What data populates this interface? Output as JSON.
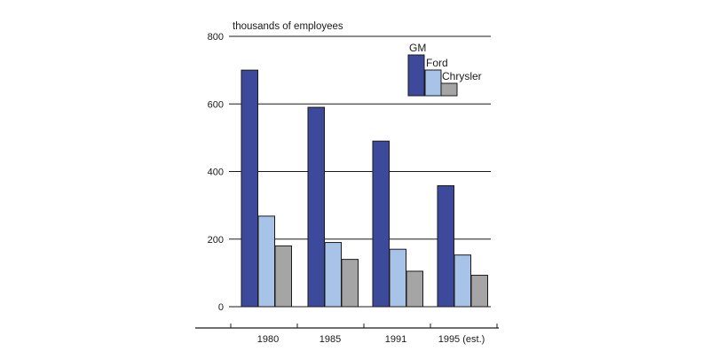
{
  "chart_data": {
    "type": "bar",
    "title": "",
    "ylabel": "thousands of employees",
    "xlabel": "",
    "categories": [
      "1980",
      "1985",
      "1991",
      "1995 (est.)"
    ],
    "series": [
      {
        "name": "GM",
        "color": "#3d4a9c",
        "values": [
          700,
          590,
          490,
          358
        ]
      },
      {
        "name": "Ford",
        "color": "#a7c4e8",
        "values": [
          268,
          190,
          170,
          153
        ]
      },
      {
        "name": "Chrysler",
        "color": "#a5a5a5",
        "values": [
          180,
          140,
          105,
          93
        ]
      }
    ],
    "ylim": [
      0,
      800
    ],
    "yticks": [
      0,
      200,
      400,
      600,
      800
    ],
    "grid": true,
    "legend_position": "top-right"
  }
}
